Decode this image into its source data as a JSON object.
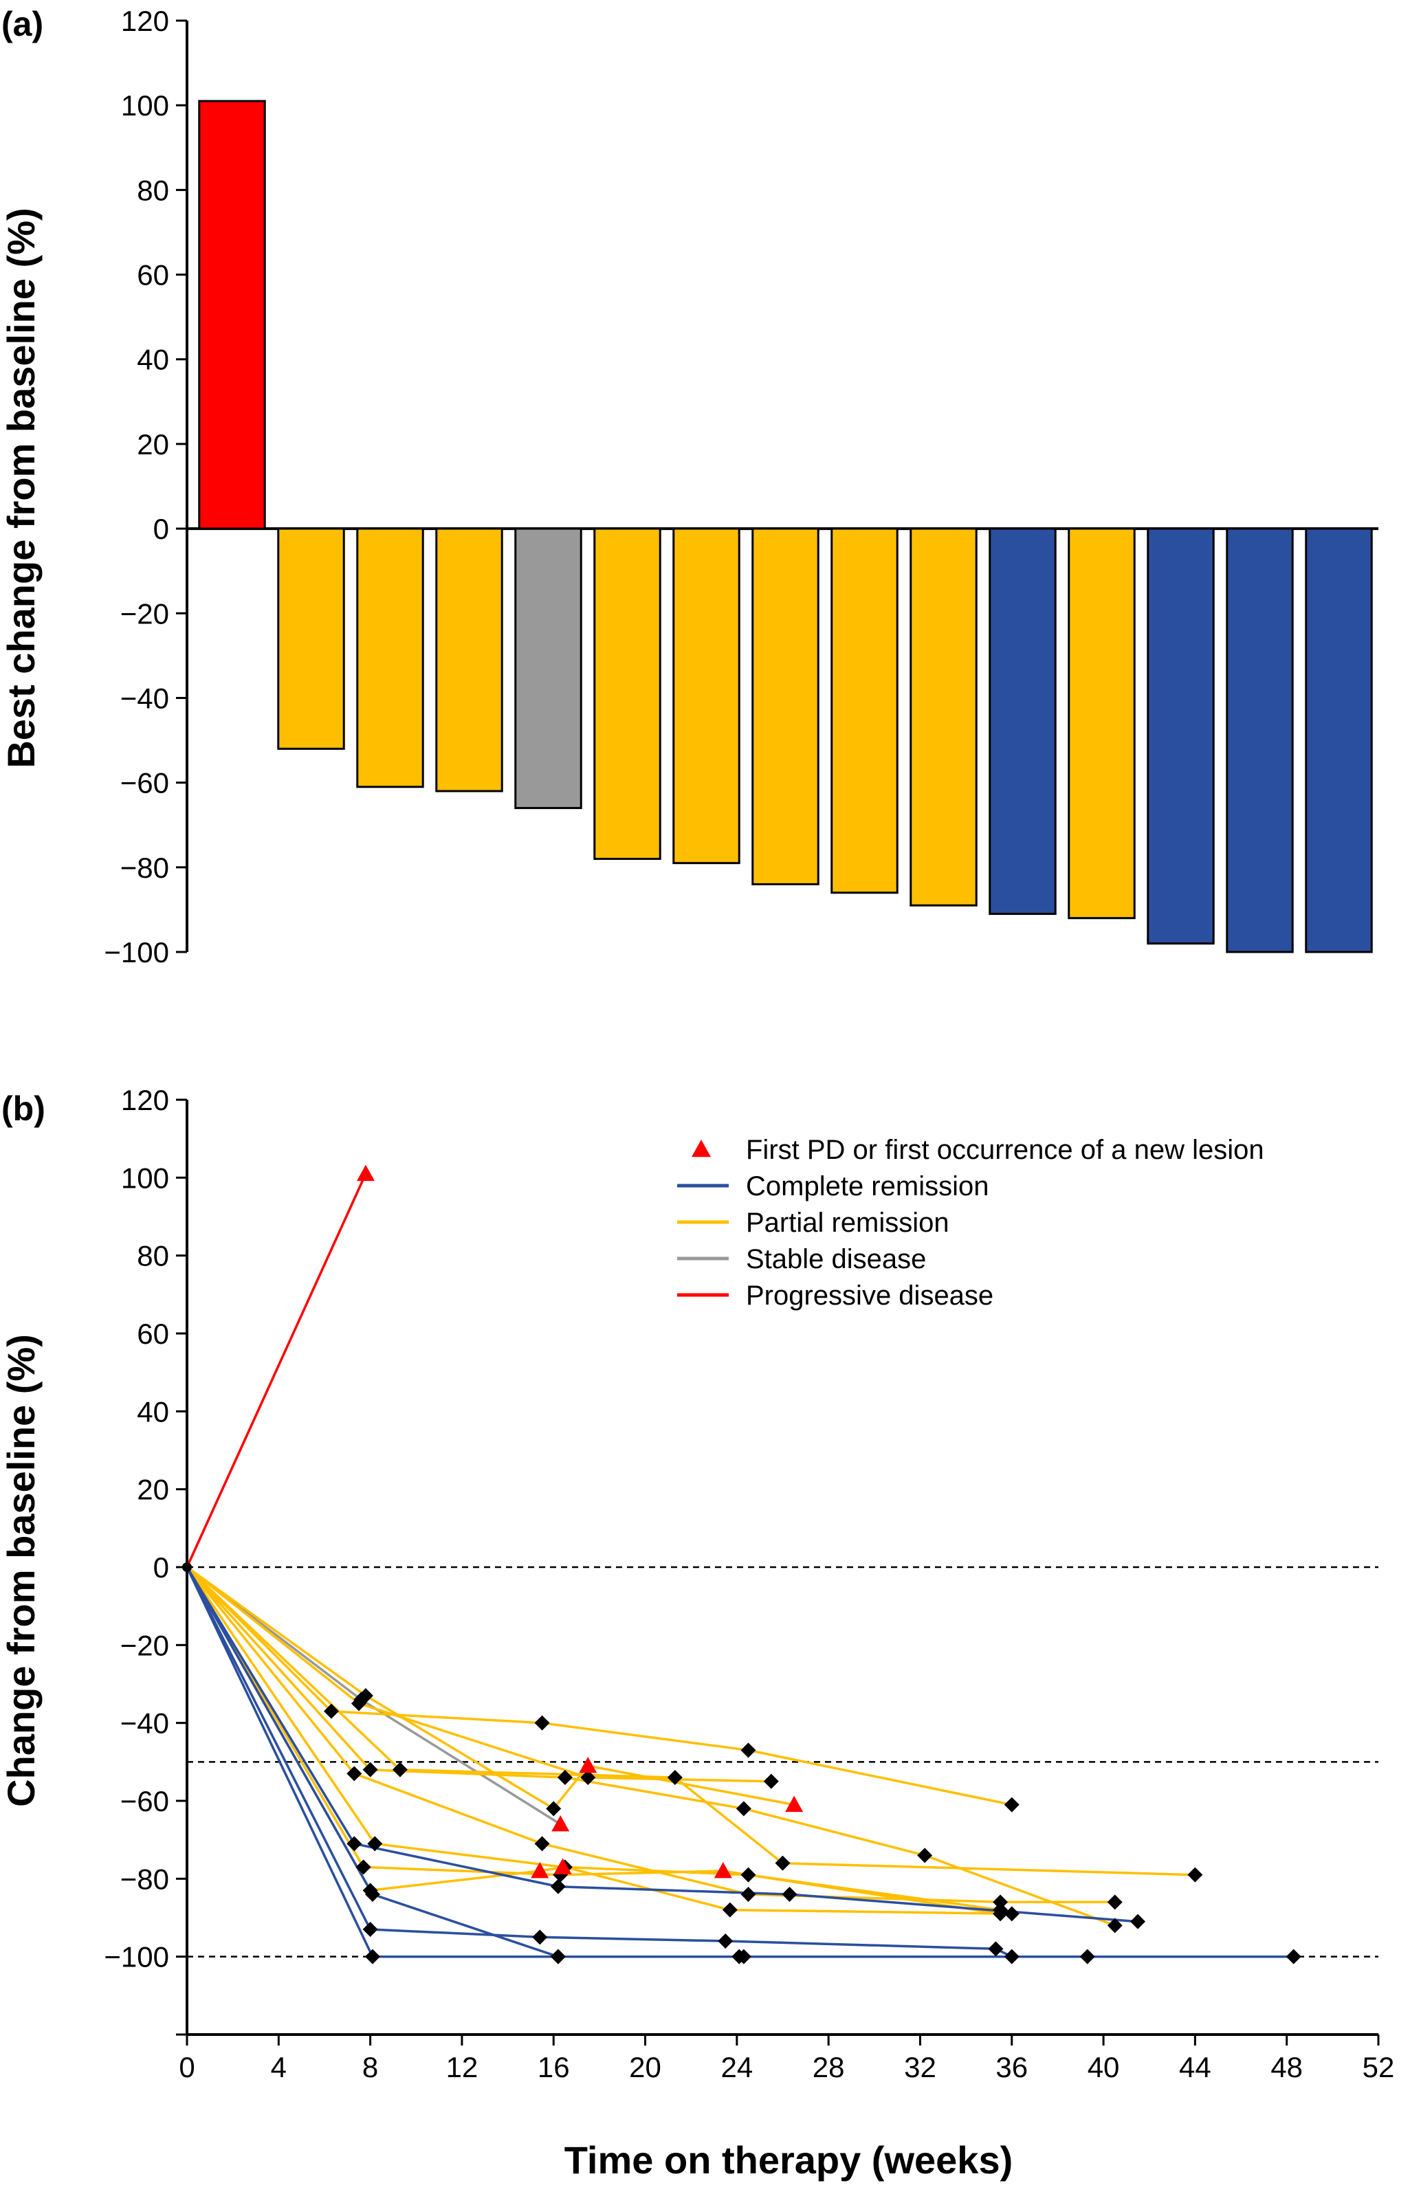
{
  "chart_data": [
    {
      "type": "bar",
      "panel_label": "(a)",
      "ylabel": "Best change from baseline (%)",
      "xlabel": "",
      "ylim": [
        -100,
        120
      ],
      "yticks": [
        -100,
        -80,
        -60,
        -40,
        -20,
        0,
        20,
        40,
        60,
        80,
        100,
        120
      ],
      "ytick_labels": [
        "−100",
        "−80",
        "−60",
        "−40",
        "−20",
        "0",
        "20",
        "40",
        "60",
        "80",
        "100",
        "120"
      ],
      "values": [
        101,
        -52,
        -61,
        -62,
        -66,
        -78,
        -79,
        -84,
        -86,
        -89,
        -91,
        -92,
        -98,
        -100,
        -100
      ],
      "bar_categories": [
        "pd",
        "pr",
        "pr",
        "pr",
        "sd",
        "pr",
        "pr",
        "pr",
        "pr",
        "pr",
        "cr",
        "pr",
        "cr",
        "cr",
        "cr"
      ],
      "colors": {
        "pd": "#ff0000",
        "pr": "#ffbf00",
        "sd": "#999999",
        "cr": "#2b4f9f"
      },
      "grid": false
    },
    {
      "type": "line",
      "panel_label": "(b)",
      "xlabel": "Time on therapy (weeks)",
      "ylabel": "Change from baseline (%)",
      "xlim": [
        0,
        52
      ],
      "ylim": [
        -120,
        120
      ],
      "xticks": [
        0,
        4,
        8,
        12,
        16,
        20,
        24,
        28,
        32,
        36,
        40,
        44,
        48,
        52
      ],
      "yticks": [
        -120,
        -100,
        -80,
        -60,
        -40,
        -20,
        0,
        20,
        40,
        60,
        80,
        100,
        120
      ],
      "ytick_labels": [
        "",
        "−100",
        "−80",
        "−60",
        "−40",
        "−20",
        "0",
        "20",
        "40",
        "60",
        "80",
        "100",
        "120"
      ],
      "reference_lines": [
        0,
        -50,
        -100
      ],
      "grid": false,
      "legend_position": "top-right",
      "legend": [
        {
          "kind": "marker",
          "color": "#ff0000",
          "label": "First PD or first occurrence of a new lesion"
        },
        {
          "kind": "line",
          "color": "#2b4f9f",
          "label": "Complete remission"
        },
        {
          "kind": "line",
          "color": "#ffbf00",
          "label": "Partial remission"
        },
        {
          "kind": "line",
          "color": "#999999",
          "label": "Stable disease"
        },
        {
          "kind": "line",
          "color": "#ff0000",
          "label": "Progressive disease"
        }
      ],
      "colors": {
        "cr": "#2b4f9f",
        "pr": "#ffbf00",
        "sd": "#999999",
        "pd": "#ff0000"
      },
      "series": [
        {
          "category": "pd",
          "points": [
            [
              0,
              0,
              "o"
            ],
            [
              7.8,
              101,
              "t"
            ]
          ]
        },
        {
          "category": "sd",
          "points": [
            [
              0,
              0,
              "o"
            ],
            [
              7.6,
              -34,
              "d"
            ],
            [
              16.3,
              -66,
              "t"
            ]
          ]
        },
        {
          "category": "pr",
          "points": [
            [
              0,
              0,
              "o"
            ],
            [
              6.3,
              -37,
              "d"
            ],
            [
              15.5,
              -40,
              "d"
            ],
            [
              24.5,
              -47,
              "d"
            ],
            [
              36,
              -61,
              "d"
            ]
          ]
        },
        {
          "category": "pr",
          "points": [
            [
              0,
              0,
              "o"
            ],
            [
              7.8,
              -33,
              "d"
            ],
            [
              16,
              -62,
              "d"
            ],
            [
              17.5,
              -51,
              "t"
            ],
            [
              26.5,
              -61,
              "t"
            ]
          ]
        },
        {
          "category": "pr",
          "points": [
            [
              0,
              0,
              "o"
            ],
            [
              7.5,
              -35,
              "d"
            ],
            [
              17.5,
              -54,
              "d"
            ],
            [
              25.5,
              -55,
              "d"
            ]
          ]
        },
        {
          "category": "pr",
          "points": [
            [
              0,
              0,
              "o"
            ],
            [
              8,
              -52,
              "d"
            ],
            [
              16.5,
              -54,
              "d"
            ],
            [
              24.3,
              -62,
              "d"
            ],
            [
              32.2,
              -74,
              "d"
            ],
            [
              40.5,
              -92,
              "d"
            ]
          ]
        },
        {
          "category": "pr",
          "points": [
            [
              0,
              0,
              "o"
            ],
            [
              9.3,
              -52,
              "d"
            ],
            [
              21.3,
              -54,
              "d"
            ],
            [
              26,
              -76,
              "d"
            ],
            [
              44,
              -79,
              "d"
            ]
          ]
        },
        {
          "category": "pr",
          "points": [
            [
              0,
              0,
              "o"
            ],
            [
              7.3,
              -53,
              "d"
            ],
            [
              15.5,
              -71,
              "d"
            ],
            [
              24.5,
              -84,
              "d"
            ],
            [
              35.5,
              -86,
              "d"
            ],
            [
              40.5,
              -86,
              "d"
            ]
          ]
        },
        {
          "category": "pr",
          "points": [
            [
              0,
              0,
              "o"
            ],
            [
              8.2,
              -71,
              "d"
            ],
            [
              16.4,
              -77,
              "t"
            ],
            [
              24.5,
              -79,
              "d"
            ],
            [
              35.5,
              -88,
              "d"
            ]
          ]
        },
        {
          "category": "pr",
          "points": [
            [
              0,
              0,
              "o"
            ],
            [
              7.7,
              -77,
              "d"
            ],
            [
              16.3,
              -79,
              "d"
            ],
            [
              23.4,
              -78,
              "t"
            ],
            [
              35.5,
              -89,
              "d"
            ]
          ]
        },
        {
          "category": "pr",
          "points": [
            [
              0,
              0,
              "o"
            ],
            [
              8,
              -83,
              "d"
            ],
            [
              15.4,
              -78,
              "t"
            ],
            [
              16.5,
              -77,
              "d"
            ],
            [
              23.7,
              -88,
              "d"
            ],
            [
              36,
              -89,
              "d"
            ]
          ]
        },
        {
          "category": "cr",
          "points": [
            [
              0,
              0,
              "o"
            ],
            [
              7.3,
              -71,
              "d"
            ],
            [
              16.2,
              -82,
              "d"
            ],
            [
              26.3,
              -84,
              "d"
            ],
            [
              41.5,
              -91,
              "d"
            ]
          ]
        },
        {
          "category": "cr",
          "points": [
            [
              0,
              0,
              "o"
            ],
            [
              8.1,
              -84,
              "d"
            ],
            [
              16.2,
              -100,
              "d"
            ],
            [
              24.3,
              -100,
              "d"
            ],
            [
              39.3,
              -100,
              "d"
            ],
            [
              48.3,
              -100,
              "d"
            ]
          ]
        },
        {
          "category": "cr",
          "points": [
            [
              0,
              0,
              "o"
            ],
            [
              8,
              -93,
              "d"
            ],
            [
              15.4,
              -95,
              "d"
            ],
            [
              23.5,
              -96,
              "d"
            ],
            [
              35.3,
              -98,
              "d"
            ],
            [
              36,
              -100,
              "d"
            ]
          ]
        },
        {
          "category": "cr",
          "points": [
            [
              0,
              0,
              "o"
            ],
            [
              8.1,
              -100,
              "d"
            ],
            [
              16.2,
              -100,
              "d"
            ],
            [
              24.1,
              -100,
              "d"
            ]
          ]
        }
      ]
    }
  ]
}
